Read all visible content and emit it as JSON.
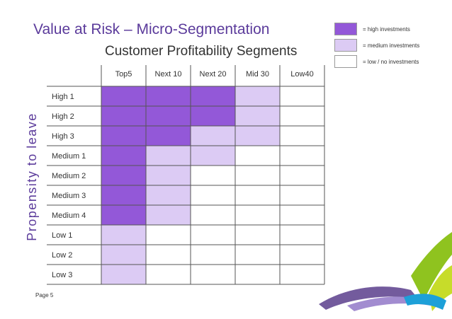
{
  "header": {
    "title": "Value at Risk – Micro-Segmentation",
    "subtitle": "Customer Profitability Segments",
    "page": "Page 5"
  },
  "legend": [
    {
      "level": "high",
      "label": "= high investments",
      "color": "#9358d8"
    },
    {
      "level": "medium",
      "label": "= medium investments",
      "color": "#dccbf4"
    },
    {
      "level": "low",
      "label": "= low / no investments",
      "color": "#ffffff"
    }
  ],
  "chart_data": {
    "type": "heatmap",
    "title": "Customer Profitability Segments",
    "xlabel": "",
    "ylabel": "Propensity to leave",
    "columns": [
      "Top5",
      "Next 10",
      "Next 20",
      "Mid 30",
      "Low40"
    ],
    "rows": [
      "High 1",
      "High 2",
      "High 3",
      "Medium 1",
      "Medium 2",
      "Medium 3",
      "Medium 4",
      "Low 1",
      "Low 2",
      "Low 3"
    ],
    "values": [
      [
        "high",
        "high",
        "high",
        "medium",
        "low"
      ],
      [
        "high",
        "high",
        "high",
        "medium",
        "low"
      ],
      [
        "high",
        "high",
        "medium",
        "medium",
        "low"
      ],
      [
        "high",
        "medium",
        "medium",
        "low",
        "low"
      ],
      [
        "high",
        "medium",
        "low",
        "low",
        "low"
      ],
      [
        "high",
        "medium",
        "low",
        "low",
        "low"
      ],
      [
        "high",
        "medium",
        "low",
        "low",
        "low"
      ],
      [
        "medium",
        "low",
        "low",
        "low",
        "low"
      ],
      [
        "medium",
        "low",
        "low",
        "low",
        "low"
      ],
      [
        "medium",
        "low",
        "low",
        "low",
        "low"
      ]
    ],
    "colors": {
      "high": "#9358d8",
      "medium": "#dccbf4",
      "low": "#ffffff",
      "grid": "#555555"
    }
  }
}
